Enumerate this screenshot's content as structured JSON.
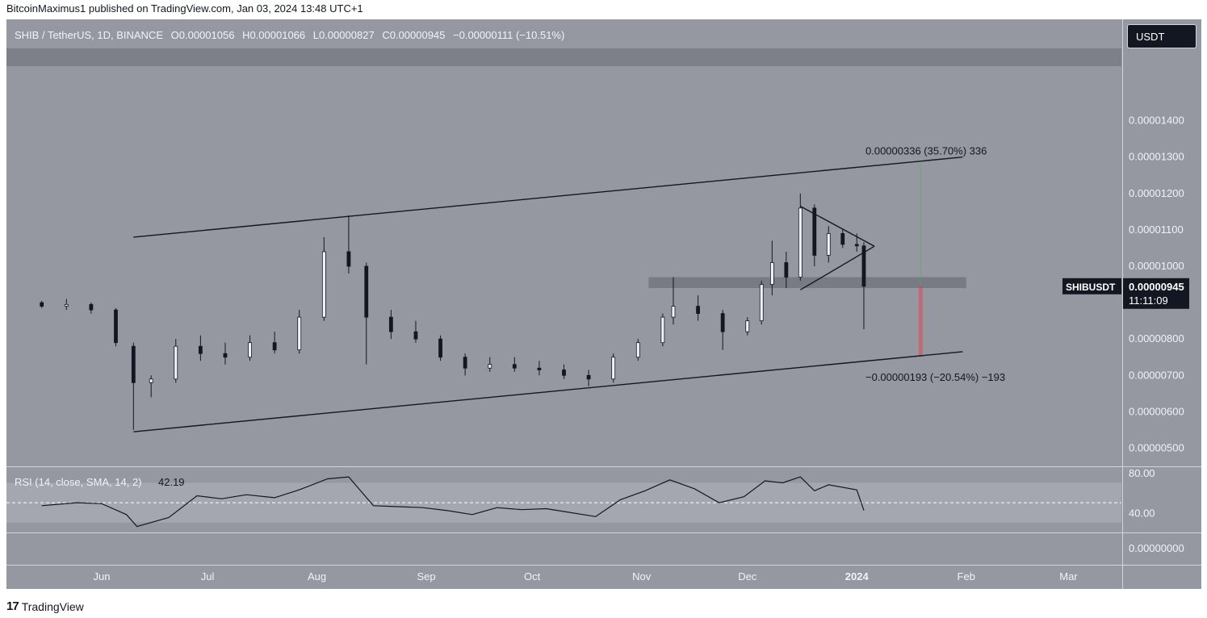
{
  "publisher_line": "BitcoinMaximus1 published on TradingView.com, Jan 03, 2024 13:48 UTC+1",
  "footer": {
    "logo_glyph": "17",
    "brand": "TradingView"
  },
  "currency_button": "USDT",
  "legend": {
    "symbol": "SHIB / TetherUS, 1D, BINANCE",
    "o_label": "O",
    "o_value": "0.00001056",
    "h_label": "H",
    "h_value": "0.00001066",
    "l_label": "L",
    "l_value": "0.00000827",
    "c_label": "C",
    "c_value": "0.00000945",
    "change": "−0.00000111 (−10.51%)"
  },
  "price_tag": {
    "symbol": "SHIBUSDT",
    "price": "0.00000945",
    "countdown": "11:11:09"
  },
  "colors": {
    "panel": "#9598a1",
    "line": "#131722",
    "zone": "#6f727b",
    "measure_up": "#4caf50",
    "measure_down": "#f23645"
  },
  "chart_data": [
    {
      "type": "candlestick",
      "ylim": [
        4.5e-06,
        1.55e-05
      ],
      "y_ticks": [
        "0.00001400",
        "0.00001300",
        "0.00001200",
        "0.00001100",
        "0.00001000",
        "0.00000800",
        "0.00000700",
        "0.00000600",
        "0.00000500"
      ],
      "x_ticks": [
        "Jun",
        "Jul",
        "Aug",
        "Sep",
        "Oct",
        "Nov",
        "Dec",
        "2024",
        "Feb",
        "Mar"
      ],
      "grid": false,
      "series": [
        {
          "values": [
            [
              "2023-05-15",
              9e-06,
              9.05e-06,
              8.85e-06,
              8.9e-06
            ],
            [
              "2023-05-22",
              8.9e-06,
              9.1e-06,
              8.8e-06,
              8.95e-06
            ],
            [
              "2023-05-29",
              8.95e-06,
              9e-06,
              8.7e-06,
              8.8e-06
            ],
            [
              "2023-06-05",
              8.8e-06,
              8.85e-06,
              7.8e-06,
              7.9e-06
            ],
            [
              "2023-06-10",
              7.8e-06,
              7.9e-06,
              5.5e-06,
              6.8e-06
            ],
            [
              "2023-06-15",
              6.8e-06,
              7e-06,
              6.4e-06,
              6.9e-06
            ],
            [
              "2023-06-22",
              6.9e-06,
              8e-06,
              6.8e-06,
              7.8e-06
            ],
            [
              "2023-06-29",
              7.8e-06,
              8.1e-06,
              7.4e-06,
              7.6e-06
            ],
            [
              "2023-07-06",
              7.6e-06,
              7.9e-06,
              7.3e-06,
              7.5e-06
            ],
            [
              "2023-07-13",
              7.5e-06,
              8.1e-06,
              7.4e-06,
              7.9e-06
            ],
            [
              "2023-07-20",
              7.9e-06,
              8.2e-06,
              7.6e-06,
              7.7e-06
            ],
            [
              "2023-07-27",
              7.7e-06,
              8.8e-06,
              7.6e-06,
              8.6e-06
            ],
            [
              "2023-08-03",
              8.6e-06,
              1.08e-05,
              8.5e-06,
              1.04e-05
            ],
            [
              "2023-08-10",
              1.04e-05,
              1.14e-05,
              9.8e-06,
              1e-05
            ],
            [
              "2023-08-15",
              1e-05,
              1.01e-05,
              7.3e-06,
              8.6e-06
            ],
            [
              "2023-08-22",
              8.6e-06,
              8.8e-06,
              8e-06,
              8.2e-06
            ],
            [
              "2023-08-29",
              8.2e-06,
              8.5e-06,
              7.9e-06,
              8e-06
            ],
            [
              "2023-09-05",
              8e-06,
              8.1e-06,
              7.4e-06,
              7.5e-06
            ],
            [
              "2023-09-12",
              7.5e-06,
              7.6e-06,
              7e-06,
              7.2e-06
            ],
            [
              "2023-09-19",
              7.2e-06,
              7.5e-06,
              7.1e-06,
              7.3e-06
            ],
            [
              "2023-09-26",
              7.3e-06,
              7.5e-06,
              7.1e-06,
              7.2e-06
            ],
            [
              "2023-10-03",
              7.2e-06,
              7.4e-06,
              7e-06,
              7.15e-06
            ],
            [
              "2023-10-10",
              7.15e-06,
              7.3e-06,
              6.9e-06,
              7e-06
            ],
            [
              "2023-10-17",
              7e-06,
              7.15e-06,
              6.7e-06,
              6.9e-06
            ],
            [
              "2023-10-24",
              6.9e-06,
              7.6e-06,
              6.8e-06,
              7.5e-06
            ],
            [
              "2023-10-31",
              7.5e-06,
              8e-06,
              7.4e-06,
              7.9e-06
            ],
            [
              "2023-11-07",
              7.9e-06,
              8.7e-06,
              7.8e-06,
              8.6e-06
            ],
            [
              "2023-11-10",
              8.6e-06,
              9.7e-06,
              8.4e-06,
              8.9e-06
            ],
            [
              "2023-11-17",
              8.9e-06,
              9.2e-06,
              8.5e-06,
              8.7e-06
            ],
            [
              "2023-11-24",
              8.7e-06,
              8.8e-06,
              7.7e-06,
              8.2e-06
            ],
            [
              "2023-12-01",
              8.2e-06,
              8.6e-06,
              8.1e-06,
              8.5e-06
            ],
            [
              "2023-12-05",
              8.5e-06,
              9.6e-06,
              8.4e-06,
              9.5e-06
            ],
            [
              "2023-12-08",
              9.5e-06,
              1.07e-05,
              9.2e-06,
              1.01e-05
            ],
            [
              "2023-12-12",
              1.01e-05,
              1.04e-05,
              9.4e-06,
              9.7e-06
            ],
            [
              "2023-12-16",
              9.7e-06,
              1.2e-05,
              9.6e-06,
              1.16e-05
            ],
            [
              "2023-12-20",
              1.16e-05,
              1.17e-05,
              1e-05,
              1.03e-05
            ],
            [
              "2023-12-24",
              1.03e-05,
              1.11e-05,
              1.01e-05,
              1.09e-05
            ],
            [
              "2023-12-28",
              1.09e-05,
              1.1e-05,
              1.05e-05,
              1.06e-05
            ],
            [
              "2024-01-01",
              1.06e-05,
              1.09e-05,
              1.04e-05,
              1.056e-05
            ],
            [
              "2024-01-03",
              1.056e-05,
              1.066e-05,
              8.27e-06,
              9.45e-06
            ]
          ]
        }
      ],
      "trend_lines": [
        {
          "from": [
            "2023-06-10",
            1.08e-05
          ],
          "to": [
            "2024-01-31",
            1.3e-05
          ]
        },
        {
          "from": [
            "2023-06-10",
            5.45e-06
          ],
          "to": [
            "2024-01-31",
            7.65e-06
          ]
        },
        {
          "from": [
            "2023-12-16",
            1.165e-05
          ],
          "to": [
            "2024-01-06",
            1.055e-05
          ]
        },
        {
          "from": [
            "2023-12-16",
            9.35e-06
          ],
          "to": [
            "2024-01-06",
            1.055e-05
          ]
        }
      ],
      "horizontal_zone": {
        "from": "2023-11-03",
        "to": "2024-02-01",
        "low": 9.4e-06,
        "high": 9.7e-06
      },
      "measurements": [
        {
          "label": "0.00000336 (35.70%) 336",
          "from_price": 9.45e-06,
          "to_price": 1.281e-05,
          "direction": "up"
        },
        {
          "label": "−0.00000193 (−20.54%) −193",
          "from_price": 9.45e-06,
          "to_price": 7.52e-06,
          "direction": "down"
        }
      ],
      "last_price": 9.45e-06
    },
    {
      "type": "line",
      "title": "RSI (14, close, SMA, 14, 2)",
      "value_label": "42.19",
      "ylim": [
        20,
        85
      ],
      "y_ticks": [
        "80.00",
        "40.00"
      ],
      "band": [
        30,
        70
      ],
      "midline": 50,
      "series": [
        {
          "values": [
            [
              "2023-05-15",
              47
            ],
            [
              "2023-05-25",
              50
            ],
            [
              "2023-06-01",
              49
            ],
            [
              "2023-06-08",
              38
            ],
            [
              "2023-06-11",
              26
            ],
            [
              "2023-06-20",
              35
            ],
            [
              "2023-06-28",
              57
            ],
            [
              "2023-07-05",
              54
            ],
            [
              "2023-07-12",
              58
            ],
            [
              "2023-07-20",
              55
            ],
            [
              "2023-07-27",
              63
            ],
            [
              "2023-08-04",
              74
            ],
            [
              "2023-08-10",
              76
            ],
            [
              "2023-08-17",
              47
            ],
            [
              "2023-08-24",
              46
            ],
            [
              "2023-08-31",
              45
            ],
            [
              "2023-09-07",
              42
            ],
            [
              "2023-09-14",
              38
            ],
            [
              "2023-09-21",
              45
            ],
            [
              "2023-09-28",
              43
            ],
            [
              "2023-10-05",
              44
            ],
            [
              "2023-10-12",
              40
            ],
            [
              "2023-10-19",
              36
            ],
            [
              "2023-10-26",
              53
            ],
            [
              "2023-11-02",
              62
            ],
            [
              "2023-11-09",
              73
            ],
            [
              "2023-11-16",
              64
            ],
            [
              "2023-11-23",
              50
            ],
            [
              "2023-11-30",
              56
            ],
            [
              "2023-12-06",
              72
            ],
            [
              "2023-12-11",
              70
            ],
            [
              "2023-12-16",
              76
            ],
            [
              "2023-12-20",
              62
            ],
            [
              "2023-12-24",
              68
            ],
            [
              "2024-01-01",
              63
            ],
            [
              "2024-01-03",
              42.19
            ]
          ]
        }
      ]
    },
    {
      "type": "line",
      "y_ticks": [
        "0.00000000"
      ]
    }
  ]
}
